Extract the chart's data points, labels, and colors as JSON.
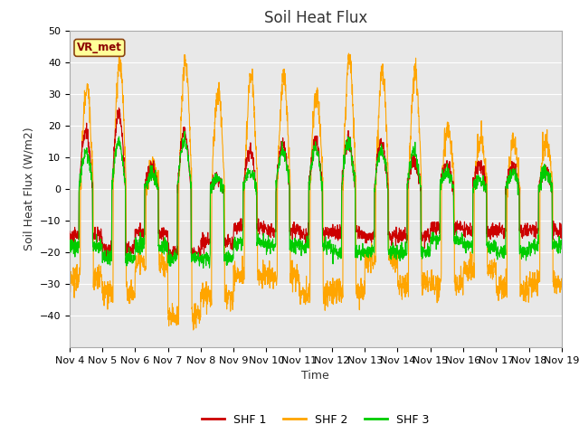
{
  "title": "Soil Heat Flux",
  "ylabel": "Soil Heat Flux (W/m2)",
  "xlabel": "Time",
  "ylim": [
    -50,
    50
  ],
  "yticks": [
    -40,
    -30,
    -20,
    -10,
    0,
    10,
    20,
    30,
    40,
    50
  ],
  "xtick_labels": [
    "Nov 4",
    "Nov 5",
    "Nov 6",
    "Nov 7",
    "Nov 8",
    "Nov 9",
    "Nov 10",
    "Nov 11",
    "Nov 12",
    "Nov 13",
    "Nov 14",
    "Nov 15",
    "Nov 16",
    "Nov 17",
    "Nov 18",
    "Nov 19"
  ],
  "legend_labels": [
    "SHF 1",
    "SHF 2",
    "SHF 3"
  ],
  "colors": {
    "SHF1": "#cc0000",
    "SHF2": "#ffa500",
    "SHF3": "#00cc00"
  },
  "annotation_text": "VR_met",
  "bg_color": "#e8e8e8",
  "fig_bg_color": "#ffffff",
  "grid_color": "#ffffff",
  "title_fontsize": 12,
  "label_fontsize": 9,
  "tick_fontsize": 8,
  "num_days": 15,
  "points_per_day": 144
}
